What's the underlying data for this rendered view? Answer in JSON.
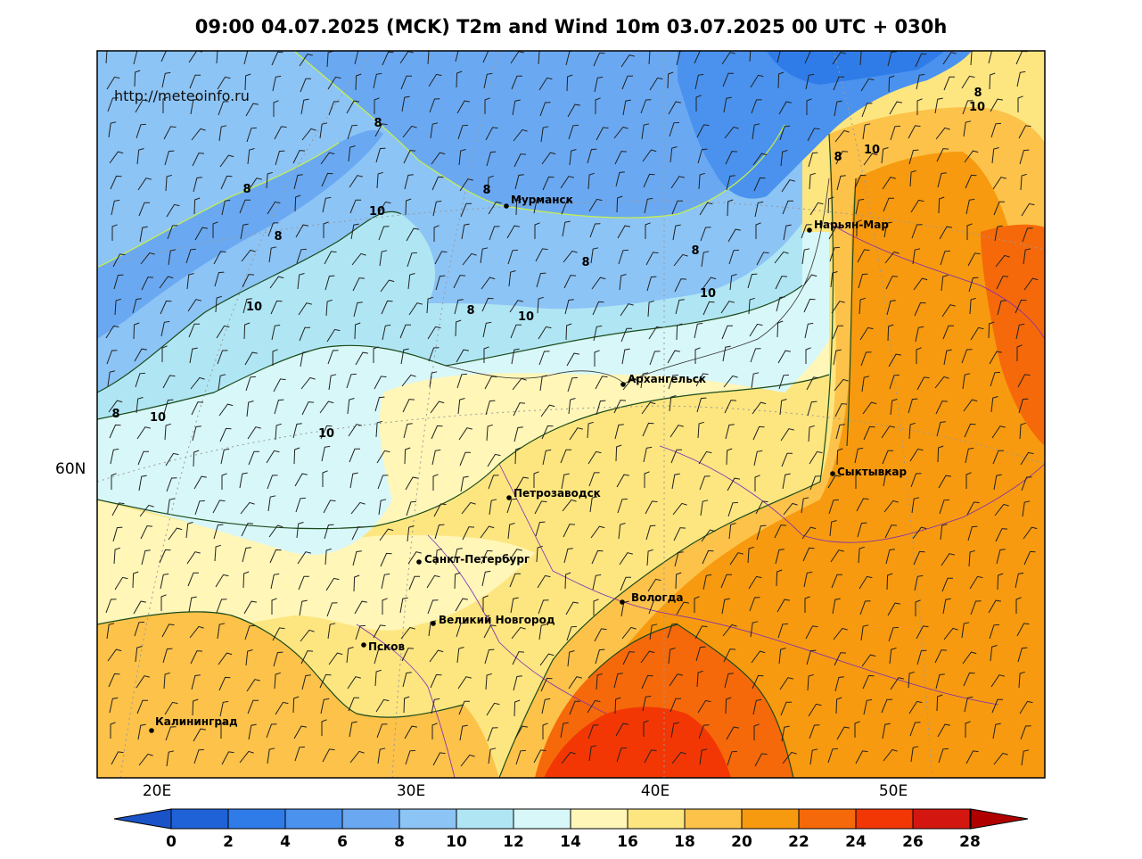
{
  "title": "09:00 04.07.2025 (MCK) T2m and Wind 10m 03.07.2025 00 UTC + 030h",
  "watermark": "http://meteoinfo.ru",
  "lat_labels": [
    {
      "text": "60N",
      "lat": 60
    }
  ],
  "lon_labels": [
    {
      "text": "20E",
      "lon": 20
    },
    {
      "text": "30E",
      "lon": 30
    },
    {
      "text": "40E",
      "lon": 40
    },
    {
      "text": "50E",
      "lon": 50
    }
  ],
  "cities": [
    {
      "name": "Мурманск",
      "id": "murmansk"
    },
    {
      "name": "Нарьян-Мар",
      "id": "naryan-mar"
    },
    {
      "name": "Архангельск",
      "id": "arkhangelsk"
    },
    {
      "name": "Сыктывкар",
      "id": "syktyvkar"
    },
    {
      "name": "Петрозаводск",
      "id": "petrozavodsk"
    },
    {
      "name": "Санкт-Петербург",
      "id": "saint-petersburg"
    },
    {
      "name": "Вологда",
      "id": "vologda"
    },
    {
      "name": "Великий Новгород",
      "id": "veliky-novgorod"
    },
    {
      "name": "Псков",
      "id": "pskov"
    },
    {
      "name": "Калининград",
      "id": "kaliningrad"
    }
  ],
  "contour_labels": [
    "8",
    "8",
    "8",
    "8",
    "8",
    "8",
    "8",
    "8",
    "8",
    "10",
    "10",
    "10",
    "10",
    "10",
    "10",
    "10",
    "10"
  ],
  "colorbar": {
    "ticks": [
      "0",
      "2",
      "4",
      "6",
      "8",
      "10",
      "12",
      "14",
      "16",
      "18",
      "20",
      "22",
      "24",
      "26",
      "28"
    ],
    "colors": [
      "#1f62d8",
      "#2f7ce8",
      "#4a92ee",
      "#6aa9f2",
      "#8cc4f6",
      "#b0e6f4",
      "#d8f7f8",
      "#fff6b8",
      "#fde680",
      "#fcc24a",
      "#f79a0f",
      "#f5690a",
      "#f23705",
      "#d41610",
      "#b20606"
    ],
    "under_color": "#1a53c8",
    "over_color": "#b00000"
  }
}
